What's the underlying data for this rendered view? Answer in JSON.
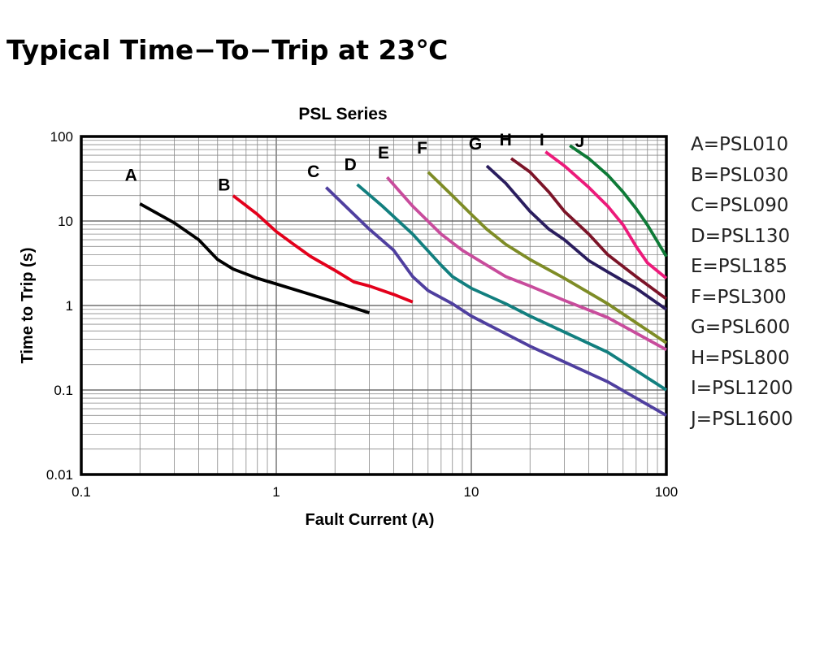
{
  "page": {
    "title": "Typical Time−To−Trip at 23℃"
  },
  "chart_data": {
    "type": "line",
    "title": "PSL Series",
    "xlabel": "Fault Current (A)",
    "ylabel": "Time to Trip (s)",
    "x_scale": "log",
    "y_scale": "log",
    "xlim": [
      0.1,
      100
    ],
    "ylim": [
      0.01,
      100
    ],
    "grid": true,
    "x_ticks": [
      "0.1",
      "1",
      "10",
      "100"
    ],
    "y_ticks": [
      "0.01",
      "0.1",
      "1",
      "10",
      "100"
    ],
    "legend_position": "right",
    "legend": [
      "A=PSL010",
      "B=PSL030",
      "C=PSL090",
      "D=PSL130",
      "E=PSL185",
      "F=PSL300",
      "G=PSL600",
      "H=PSL800",
      "I=PSL1200",
      "J=PSL1600"
    ],
    "series": [
      {
        "name": "A",
        "color": "#000000",
        "points": [
          [
            0.2,
            16
          ],
          [
            0.3,
            9.5
          ],
          [
            0.4,
            6
          ],
          [
            0.5,
            3.5
          ],
          [
            0.6,
            2.7
          ],
          [
            0.8,
            2.1
          ],
          [
            1,
            1.8
          ],
          [
            1.5,
            1.35
          ],
          [
            2,
            1.1
          ],
          [
            3,
            0.82
          ]
        ]
      },
      {
        "name": "B",
        "color": "#e3001b",
        "points": [
          [
            0.6,
            20
          ],
          [
            0.8,
            12
          ],
          [
            1,
            7.5
          ],
          [
            1.2,
            5.5
          ],
          [
            1.5,
            3.8
          ],
          [
            2,
            2.6
          ],
          [
            2.5,
            1.9
          ],
          [
            3,
            1.7
          ],
          [
            4,
            1.35
          ],
          [
            5,
            1.1
          ]
        ]
      },
      {
        "name": "C",
        "color": "#4f3f9f",
        "points": [
          [
            1.8,
            25
          ],
          [
            2.5,
            12
          ],
          [
            3,
            8
          ],
          [
            4,
            4.5
          ],
          [
            5,
            2.2
          ],
          [
            6,
            1.5
          ],
          [
            8,
            1.05
          ],
          [
            10,
            0.75
          ],
          [
            20,
            0.33
          ],
          [
            50,
            0.125
          ],
          [
            100,
            0.05
          ]
        ]
      },
      {
        "name": "D",
        "color": "#127f7f",
        "points": [
          [
            2.6,
            27
          ],
          [
            3.5,
            15
          ],
          [
            5,
            7
          ],
          [
            7,
            3
          ],
          [
            8,
            2.2
          ],
          [
            10,
            1.6
          ],
          [
            15,
            1.05
          ],
          [
            20,
            0.75
          ],
          [
            50,
            0.28
          ],
          [
            100,
            0.1
          ]
        ]
      },
      {
        "name": "E",
        "color": "#c84c9c",
        "points": [
          [
            3.7,
            33
          ],
          [
            5,
            15
          ],
          [
            7,
            7
          ],
          [
            9,
            4.5
          ],
          [
            12,
            3
          ],
          [
            15,
            2.2
          ],
          [
            20,
            1.7
          ],
          [
            30,
            1.15
          ],
          [
            50,
            0.72
          ],
          [
            100,
            0.3
          ]
        ]
      },
      {
        "name": "F",
        "color": "#7e8c26",
        "points": [
          [
            6,
            38
          ],
          [
            8,
            20
          ],
          [
            10,
            12
          ],
          [
            12,
            8
          ],
          [
            15,
            5.3
          ],
          [
            20,
            3.5
          ],
          [
            30,
            2.1
          ],
          [
            50,
            1.05
          ],
          [
            100,
            0.36
          ]
        ]
      },
      {
        "name": "G",
        "color": "#2a1d5e",
        "points": [
          [
            12,
            45
          ],
          [
            15,
            28
          ],
          [
            20,
            13
          ],
          [
            25,
            8
          ],
          [
            30,
            6
          ],
          [
            40,
            3.4
          ],
          [
            50,
            2.5
          ],
          [
            70,
            1.6
          ],
          [
            100,
            0.9
          ]
        ]
      },
      {
        "name": "H",
        "color": "#7c1428",
        "points": [
          [
            16,
            55
          ],
          [
            20,
            38
          ],
          [
            25,
            22
          ],
          [
            30,
            13
          ],
          [
            40,
            7
          ],
          [
            50,
            4
          ],
          [
            70,
            2.2
          ],
          [
            100,
            1.2
          ]
        ]
      },
      {
        "name": "I",
        "color": "#ec1a7a",
        "points": [
          [
            24,
            66
          ],
          [
            30,
            45
          ],
          [
            40,
            25
          ],
          [
            50,
            15
          ],
          [
            60,
            9
          ],
          [
            70,
            5
          ],
          [
            80,
            3.2
          ],
          [
            100,
            2.1
          ]
        ]
      },
      {
        "name": "J",
        "color": "#0e7a37",
        "points": [
          [
            32,
            78
          ],
          [
            40,
            55
          ],
          [
            50,
            35
          ],
          [
            60,
            22
          ],
          [
            70,
            14
          ],
          [
            80,
            9
          ],
          [
            100,
            3.8
          ]
        ]
      }
    ],
    "annotations": [
      {
        "text": "A",
        "x": 0.18,
        "y": 30
      },
      {
        "text": "B",
        "x": 0.54,
        "y": 23
      },
      {
        "text": "C",
        "x": 1.55,
        "y": 33
      },
      {
        "text": "D",
        "x": 2.4,
        "y": 40
      },
      {
        "text": "E",
        "x": 3.55,
        "y": 55
      },
      {
        "text": "F",
        "x": 5.6,
        "y": 63
      },
      {
        "text": "G",
        "x": 10.5,
        "y": 70
      },
      {
        "text": "H",
        "x": 15,
        "y": 78
      },
      {
        "text": "I",
        "x": 23,
        "y": 78
      },
      {
        "text": "J",
        "x": 36,
        "y": 75
      }
    ]
  }
}
